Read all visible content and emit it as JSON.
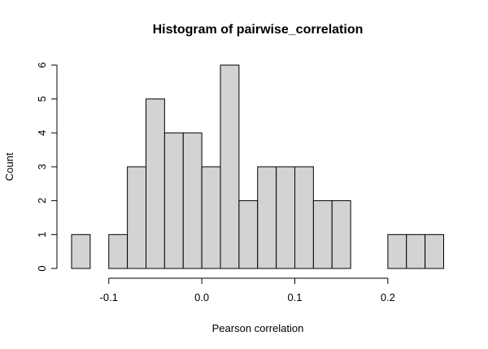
{
  "chart_data": {
    "type": "bar",
    "title": "Histogram of pairwise_correlation",
    "xlabel": "Pearson correlation",
    "ylabel": "Count",
    "bin_width": 0.02,
    "bins": [
      {
        "start": -0.14,
        "end": -0.12,
        "count": 1
      },
      {
        "start": -0.12,
        "end": -0.1,
        "count": 0
      },
      {
        "start": -0.1,
        "end": -0.08,
        "count": 1
      },
      {
        "start": -0.08,
        "end": -0.06,
        "count": 3
      },
      {
        "start": -0.06,
        "end": -0.04,
        "count": 5
      },
      {
        "start": -0.04,
        "end": -0.02,
        "count": 4
      },
      {
        "start": -0.02,
        "end": 0.0,
        "count": 4
      },
      {
        "start": 0.0,
        "end": 0.02,
        "count": 3
      },
      {
        "start": 0.02,
        "end": 0.04,
        "count": 6
      },
      {
        "start": 0.04,
        "end": 0.06,
        "count": 2
      },
      {
        "start": 0.06,
        "end": 0.08,
        "count": 3
      },
      {
        "start": 0.08,
        "end": 0.1,
        "count": 3
      },
      {
        "start": 0.1,
        "end": 0.12,
        "count": 3
      },
      {
        "start": 0.12,
        "end": 0.14,
        "count": 2
      },
      {
        "start": 0.14,
        "end": 0.16,
        "count": 2
      },
      {
        "start": 0.16,
        "end": 0.18,
        "count": 0
      },
      {
        "start": 0.18,
        "end": 0.2,
        "count": 0
      },
      {
        "start": 0.2,
        "end": 0.22,
        "count": 1
      },
      {
        "start": 0.22,
        "end": 0.24,
        "count": 1
      },
      {
        "start": 0.24,
        "end": 0.26,
        "count": 1
      }
    ],
    "x_ticks": [
      -0.1,
      0.0,
      0.1,
      0.2
    ],
    "x_tick_labels": [
      "-0.1",
      "0.0",
      "0.1",
      "0.2"
    ],
    "y_ticks": [
      0,
      1,
      2,
      3,
      4,
      5,
      6
    ],
    "y_tick_labels": [
      "0",
      "1",
      "2",
      "3",
      "4",
      "5",
      "6"
    ],
    "xlim": [
      -0.14,
      0.26
    ],
    "ylim": [
      0,
      6
    ],
    "grid": false,
    "bar_color": "#d3d3d3",
    "edge_color": "#000000"
  }
}
